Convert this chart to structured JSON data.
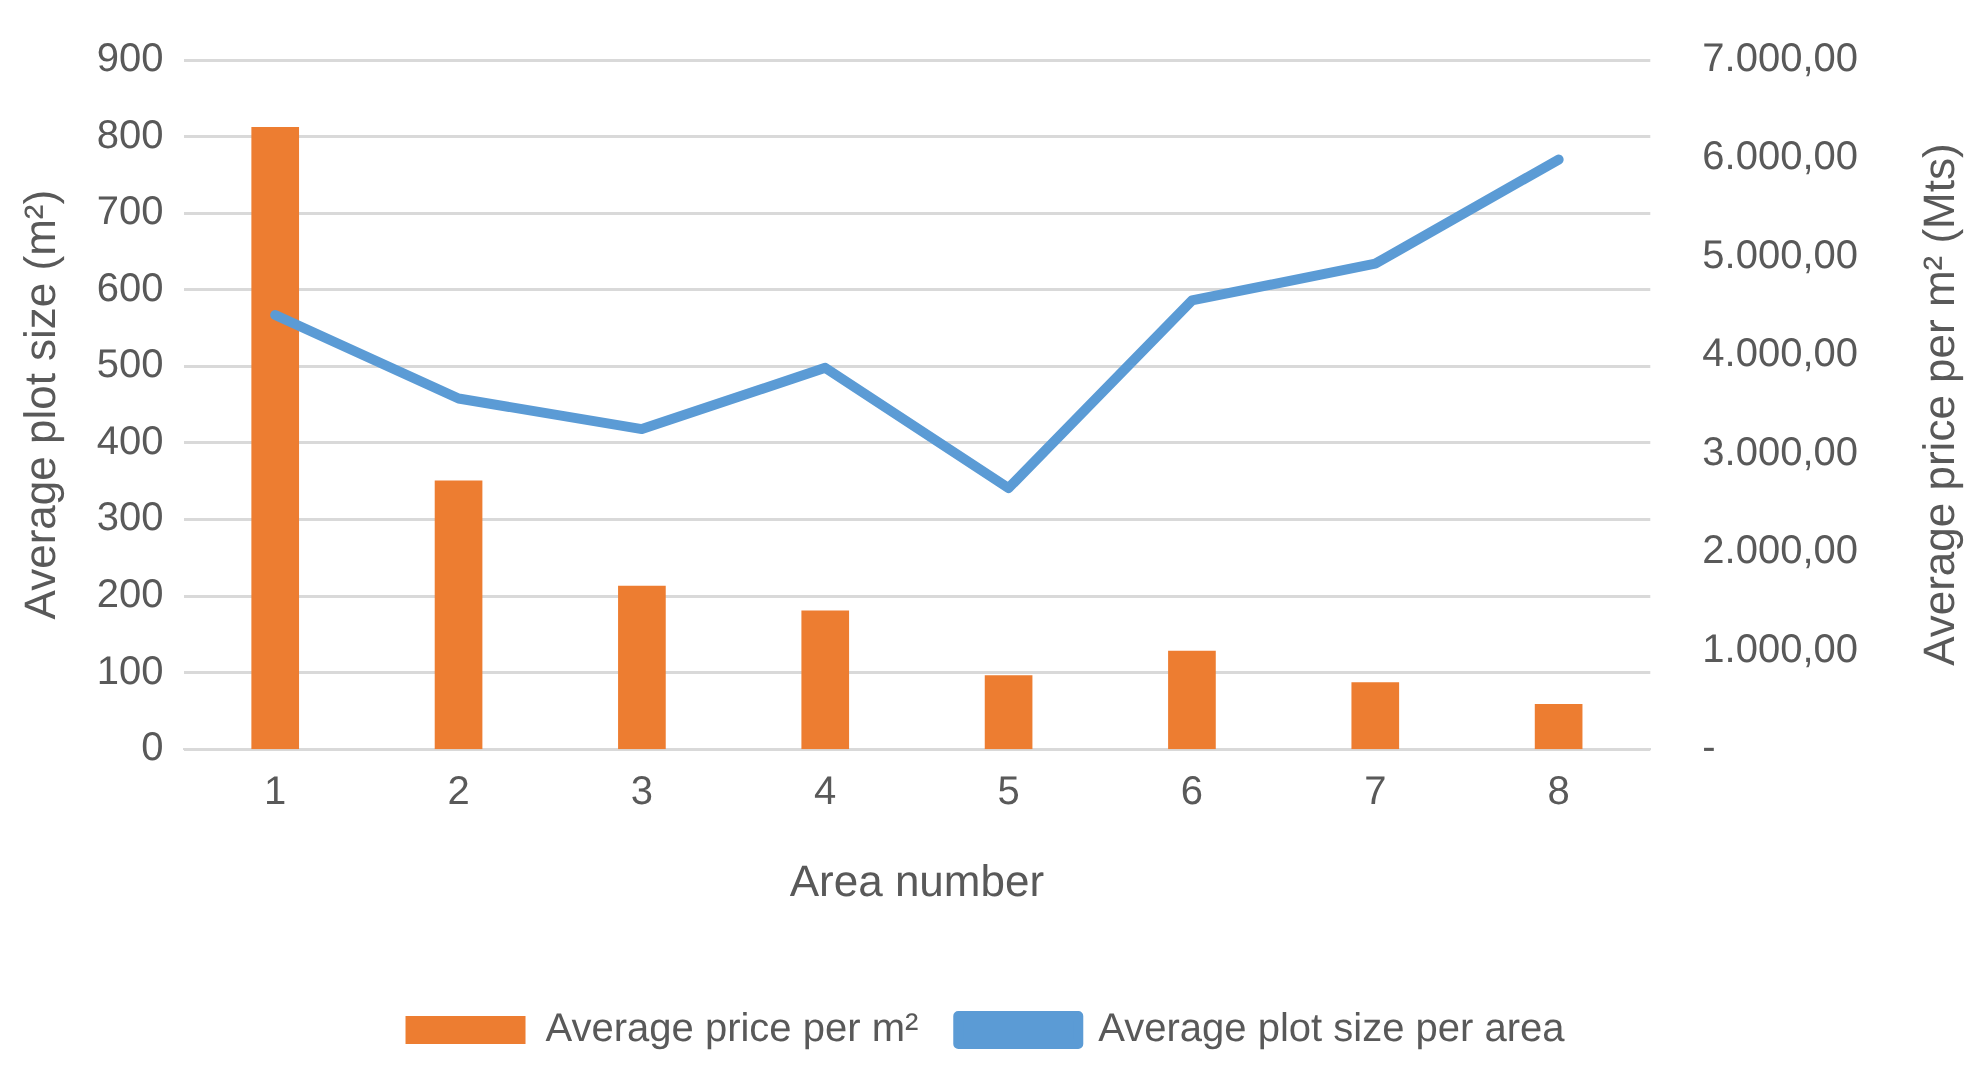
{
  "chart_data": {
    "type": "bar",
    "xlabel": "Area number",
    "ylabel": "Average plot size (m²)",
    "y2label": "Average price per m² (Mts)",
    "categories": [
      "1",
      "2",
      "3",
      "4",
      "5",
      "6",
      "7",
      "8"
    ],
    "series": [
      {
        "name": "Average price per m²",
        "axis": "y2",
        "color": "#ed7d31",
        "values": [
          6320,
          2730,
          1660,
          1410,
          750,
          1000,
          680,
          460
        ]
      },
      {
        "name": "Average plot size per area",
        "type": "line",
        "axis": "y",
        "color": "#5b9bd5",
        "values": [
          567,
          458,
          418,
          498,
          341,
          586,
          634,
          770
        ]
      }
    ],
    "ylim": [
      0,
      900
    ],
    "yticks": [
      0,
      100,
      200,
      300,
      400,
      500,
      600,
      700,
      800,
      900
    ],
    "y2lim": [
      0,
      7000
    ],
    "y2ticks": [
      {
        "value": 0,
        "label": "-"
      },
      {
        "value": 1000,
        "label": "1.000,00"
      },
      {
        "value": 2000,
        "label": "2.000,00"
      },
      {
        "value": 3000,
        "label": "3.000,00"
      },
      {
        "value": 4000,
        "label": "4.000,00"
      },
      {
        "value": 5000,
        "label": "5.000,00"
      },
      {
        "value": 6000,
        "label": "6.000,00"
      },
      {
        "value": 7000,
        "label": "7.000,00"
      }
    ],
    "grid": "y",
    "legend": "bottom",
    "marker": "none"
  }
}
